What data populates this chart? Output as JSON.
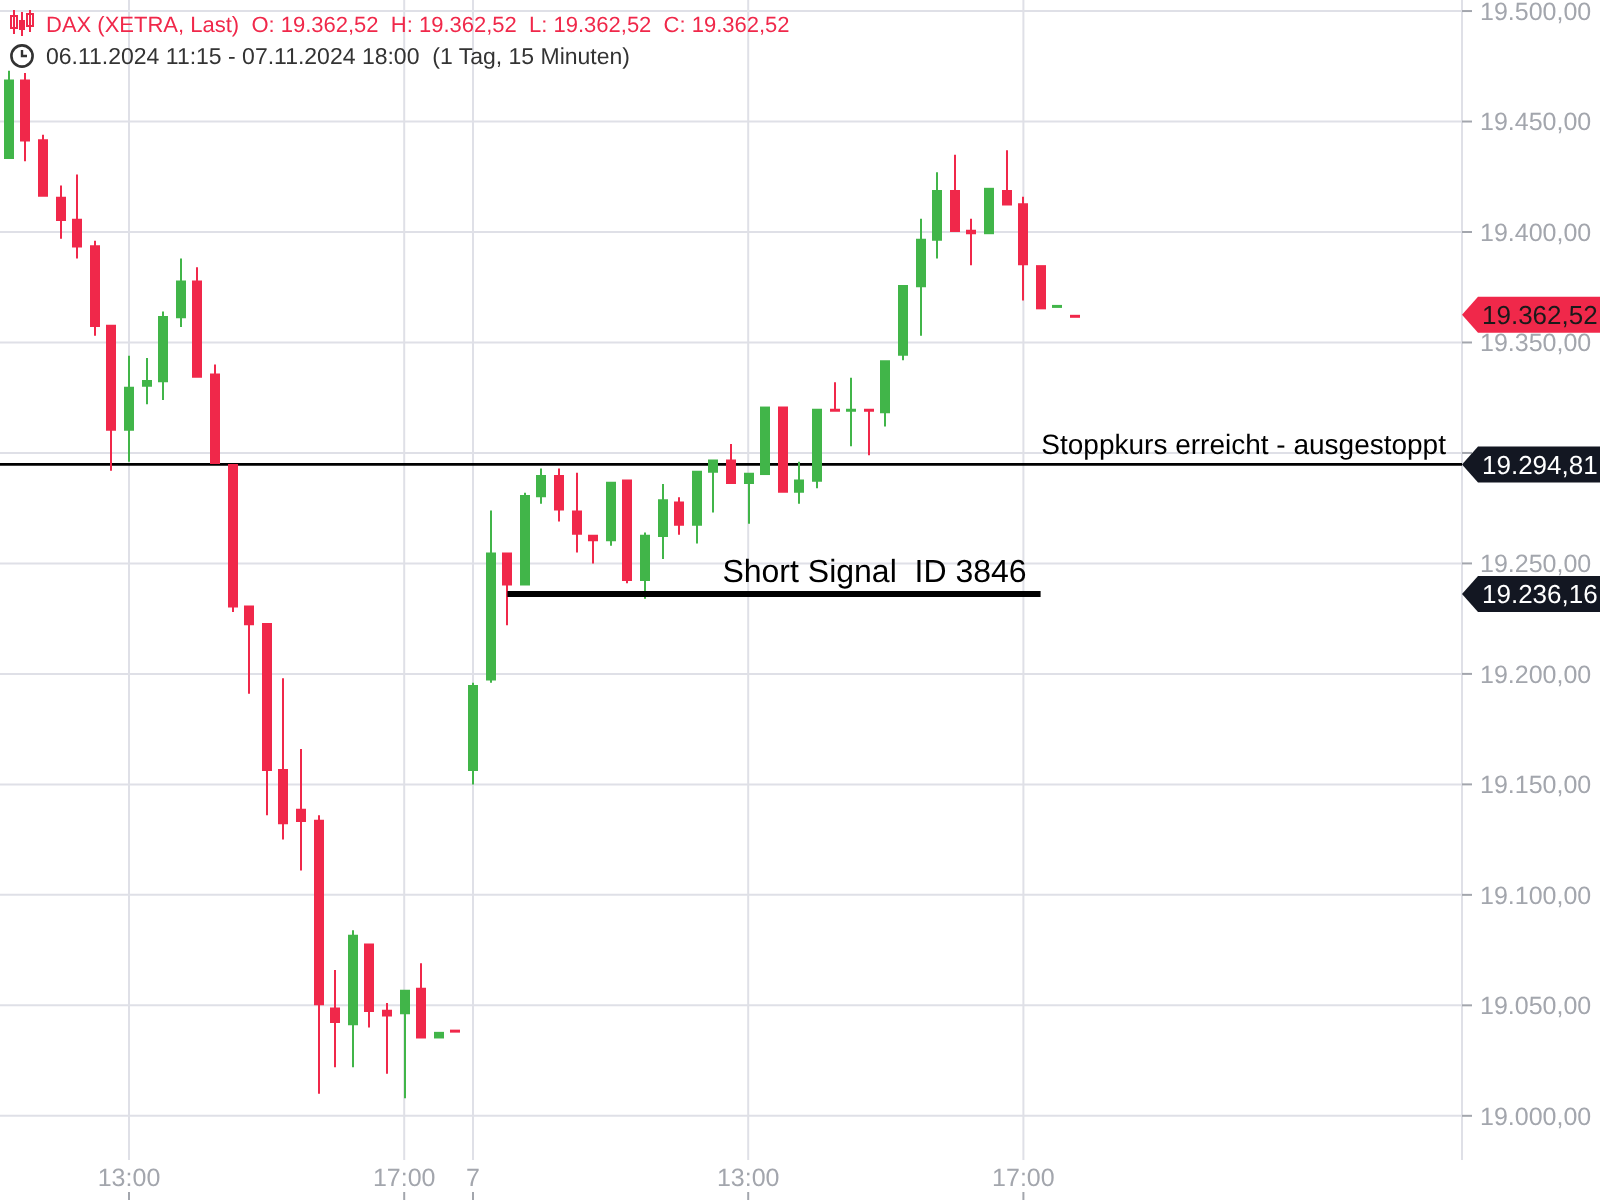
{
  "chart_data": {
    "type": "candlestick",
    "title": "DAX (XETRA, Last)  O: 19.362,52  H: 19.362,52  L: 19.362,52  C: 19.362,52",
    "subtitle": "06.11.2024 11:15 - 07.11.2024 18:00  (1 Tag, 15 Minuten)",
    "categories": [
      null,
      null,
      null,
      null,
      null,
      null,
      null,
      "13:00",
      null,
      null,
      null,
      null,
      null,
      null,
      null,
      null,
      null,
      null,
      null,
      null,
      null,
      null,
      null,
      "17:00",
      null,
      null,
      null,
      "7",
      null,
      null,
      null,
      null,
      null,
      null,
      null,
      null,
      null,
      null,
      null,
      null,
      null,
      null,
      null,
      "13:00",
      null,
      null,
      null,
      null,
      null,
      null,
      null,
      null,
      null,
      null,
      null,
      null,
      null,
      null,
      null,
      "17:00",
      null,
      null,
      null,
      null,
      null,
      null,
      null,
      null,
      null,
      null,
      null,
      null,
      null,
      null,
      null,
      null,
      null,
      null,
      null,
      null,
      null,
      null,
      null,
      null,
      null
    ],
    "ohlc": [
      [
        19433,
        19473,
        19433,
        19469
      ],
      [
        19469,
        19472,
        19432,
        19441
      ],
      [
        19442,
        19444,
        19416,
        19416
      ],
      [
        19416,
        19421,
        19397,
        19405
      ],
      [
        19406,
        19426,
        19388,
        19393
      ],
      [
        19394,
        19396,
        19353,
        19357
      ],
      [
        19358,
        19358,
        19292,
        19310
      ],
      [
        19310,
        19344,
        19296,
        19330
      ],
      [
        19330,
        19343,
        19322,
        19333
      ],
      [
        19332,
        19364,
        19324,
        19362
      ],
      [
        19361,
        19388,
        19357,
        19378
      ],
      [
        19378,
        19384,
        19334,
        19334
      ],
      [
        19336,
        19340,
        19295,
        19295
      ],
      [
        19295,
        19295,
        19228,
        19230
      ],
      [
        19231,
        19231,
        19191,
        19222
      ],
      [
        19223,
        19223,
        19136,
        19156
      ],
      [
        19157,
        19198,
        19125,
        19132
      ],
      [
        19139,
        19166,
        19111,
        19133
      ],
      [
        19134,
        19136,
        19010,
        19050
      ],
      [
        19049,
        19066,
        19022,
        19042
      ],
      [
        19041,
        19084,
        19022,
        19082
      ],
      [
        19078,
        19078,
        19040,
        19047
      ],
      [
        19048,
        19051,
        19019,
        19045
      ],
      [
        19046,
        19057,
        19008,
        19057
      ],
      [
        19058,
        19069,
        19035,
        19035
      ],
      [
        19035,
        19038,
        19035,
        19038
      ],
      [
        19039,
        19039,
        19038,
        19038
      ],
      [
        19156,
        19196,
        19150,
        19195
      ],
      [
        19197,
        19274,
        19196,
        19255
      ],
      [
        19255,
        19255,
        19222,
        19240
      ],
      [
        19240,
        19282,
        19240,
        19281
      ],
      [
        19280,
        19293,
        19277,
        19290
      ],
      [
        19290,
        19293,
        19269,
        19274
      ],
      [
        19274,
        19291,
        19255,
        19263
      ],
      [
        19263,
        19263,
        19250,
        19260
      ],
      [
        19260,
        19287,
        19258,
        19287
      ],
      [
        19288,
        19288,
        19241,
        19242
      ],
      [
        19242,
        19264,
        19234,
        19263
      ],
      [
        19262,
        19286,
        19252,
        19279
      ],
      [
        19278,
        19280,
        19263,
        19267
      ],
      [
        19267,
        19292,
        19259,
        19292
      ],
      [
        19291,
        19297,
        19273,
        19297
      ],
      [
        19297,
        19304,
        19286,
        19286
      ],
      [
        19286,
        19291,
        19268,
        19291
      ],
      [
        19290,
        19321,
        19290,
        19321
      ],
      [
        19321,
        19321,
        19282,
        19282
      ],
      [
        19282,
        19296,
        19277,
        19288
      ],
      [
        19287,
        19320,
        19284,
        19320
      ],
      [
        19320,
        19332,
        19319,
        19319
      ],
      [
        19319,
        19334,
        19303,
        19320
      ],
      [
        19320,
        19320,
        19299,
        19319
      ],
      [
        19318,
        19342,
        19312,
        19342
      ],
      [
        19344,
        19376,
        19342,
        19376
      ],
      [
        19375,
        19406,
        19353,
        19397
      ],
      [
        19396,
        19427,
        19388,
        19419
      ],
      [
        19419,
        19435,
        19400,
        19400
      ],
      [
        19401,
        19406,
        19385,
        19399
      ],
      [
        19399,
        19420,
        19399,
        19420
      ],
      [
        19419,
        19437,
        19412,
        19412
      ],
      [
        19413,
        19416,
        19369,
        19385
      ],
      [
        19385,
        19385,
        19365,
        19365
      ],
      [
        19366,
        19367,
        19366,
        19367
      ],
      [
        19362.52,
        19362.52,
        19362.52,
        19362.52
      ],
      null,
      null,
      null,
      null,
      null,
      null,
      null,
      null,
      null,
      null,
      null,
      null,
      null,
      null,
      null,
      null,
      null,
      null,
      null,
      null,
      null,
      null
    ],
    "series": [
      {
        "type": "line",
        "name": "Short Signal  ID 3846",
        "color": "#000000",
        "values": [
          null,
          null,
          null,
          null,
          null,
          null,
          null,
          null,
          null,
          null,
          null,
          null,
          null,
          null,
          null,
          null,
          null,
          null,
          null,
          null,
          null,
          null,
          null,
          null,
          null,
          null,
          null,
          null,
          null,
          19236.16,
          19236.16,
          19236.16,
          19236.16,
          19236.16,
          19236.16,
          19236.16,
          19236.16,
          19236.16,
          19236.16,
          19236.16,
          19236.16,
          19236.16,
          19236.16,
          19236.16,
          19236.16,
          19236.16,
          19236.16,
          19236.16,
          19236.16,
          19236.16,
          19236.16,
          19236.16,
          19236.16,
          19236.16,
          19236.16,
          19236.16,
          19236.16,
          19236.16,
          19236.16,
          19236.16,
          19236.16,
          null,
          null,
          null,
          null,
          null,
          null,
          null,
          null,
          null,
          null,
          null,
          null,
          null,
          null,
          null,
          null,
          null,
          null,
          null,
          null,
          null,
          null,
          null,
          null
        ]
      }
    ],
    "ylim": [
      18980,
      19505
    ],
    "yticks": [
      {
        "value": 19000,
        "label": "19.000,00"
      },
      {
        "value": 19050,
        "label": "19.050,00"
      },
      {
        "value": 19100,
        "label": "19.100,00"
      },
      {
        "value": 19150,
        "label": "19.150,00"
      },
      {
        "value": 19200,
        "label": "19.200,00"
      },
      {
        "value": 19250,
        "label": "19.250,00"
      },
      {
        "value": 19300,
        "label": null
      },
      {
        "value": 19350,
        "label": "19.350,00"
      },
      {
        "value": 19400,
        "label": "19.400,00"
      },
      {
        "value": 19450,
        "label": "19.450,00"
      },
      {
        "value": 19500,
        "label": "19.500,00"
      }
    ],
    "grid": true,
    "ref_lines": [
      {
        "axis": "y",
        "value": 19294.81,
        "label": "Stoppkurs erreicht - ausgestoppt",
        "color": "#000000"
      }
    ],
    "annotations": [
      "19.362,52",
      "19.294,81",
      "19.236,16"
    ]
  }
}
